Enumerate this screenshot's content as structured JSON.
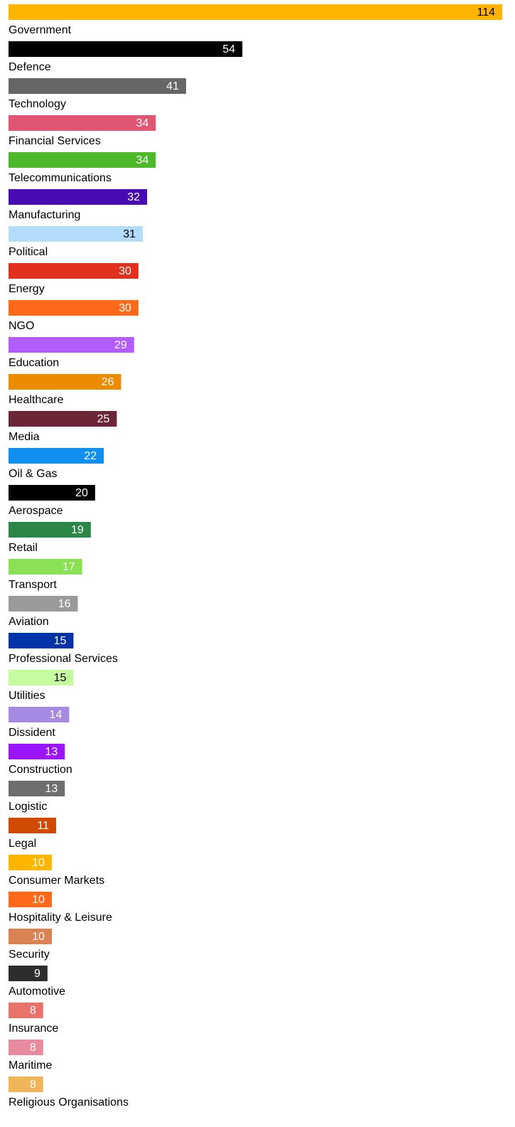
{
  "chart_data": {
    "type": "bar",
    "orientation": "horizontal",
    "categories": [
      null,
      "Government",
      "Defence",
      "Technology",
      "Financial Services",
      "Telecommunications",
      "Manufacturing",
      "Political",
      "Energy",
      "NGO",
      "Education",
      "Healthcare",
      "Media",
      "Oil & Gas",
      "Aerospace",
      "Retail",
      "Transport",
      "Aviation",
      "Professional Services",
      "Utilities",
      "Dissident",
      "Construction",
      "Logistic",
      "Legal",
      "Consumer Markets",
      "Hospitality & Leisure",
      "Security",
      "Automotive",
      "Insurance",
      "Maritime",
      "Religious Organisations"
    ],
    "values": [
      114,
      54,
      41,
      34,
      34,
      32,
      31,
      30,
      30,
      29,
      26,
      25,
      22,
      20,
      19,
      17,
      16,
      15,
      15,
      14,
      13,
      13,
      11,
      10,
      10,
      10,
      9,
      8,
      8,
      8,
      null
    ],
    "colors": [
      "#ffb400",
      "#000000",
      "#666666",
      "#e05572",
      "#4cb82a",
      "#4a0ab3",
      "#b3dcfa",
      "#e0301e",
      "#fe6a1a",
      "#b35cff",
      "#eb8c00",
      "#6b2737",
      "#0f8fef",
      "#000000",
      "#2c8646",
      "#8ae154",
      "#9a9a9a",
      "#0033a8",
      "#c4fc9f",
      "#a689e0",
      "#9b16ff",
      "#6e6e6e",
      "#d04a02",
      "#ffb600",
      "#fe6a1a",
      "#db8252",
      "#2d2d2d",
      "#e8736b",
      "#e88ba0",
      "#efb558",
      null
    ],
    "label_colors": [
      "#000000",
      "#ffffff",
      "#ffffff",
      "#ffffff",
      "#ffffff",
      "#ffffff",
      "#000000",
      "#ffffff",
      "#ffffff",
      "#ffffff",
      "#ffffff",
      "#ffffff",
      "#ffffff",
      "#ffffff",
      "#ffffff",
      "#ffffff",
      "#ffffff",
      "#ffffff",
      "#000000",
      "#ffffff",
      "#ffffff",
      "#ffffff",
      "#ffffff",
      "#ffffff",
      "#ffffff",
      "#ffffff",
      "#ffffff",
      "#ffffff",
      "#ffffff",
      "#ffffff",
      null
    ]
  }
}
